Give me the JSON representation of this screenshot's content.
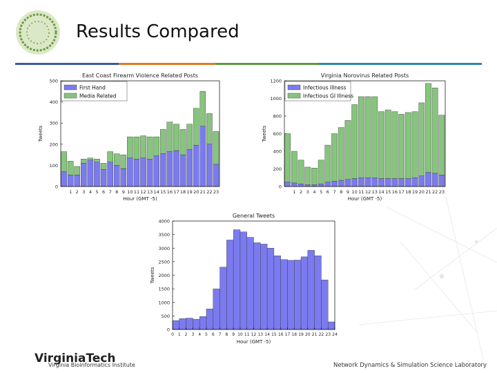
{
  "slide": {
    "title": "Results Compared",
    "footer_left_logo": "VirginiaTech",
    "footer_left_sub": "Virginia Bioinformatics Institute",
    "footer_right": "Network Dynamics & Simulation Science Laboratory"
  },
  "chart_data": [
    {
      "type": "stacked_bar",
      "title": "East Coast Firearm Violence Related Posts",
      "x_label": "Hour (GMT -5)",
      "y_label": "Tweets",
      "categories": [
        null,
        "1",
        "2",
        "3",
        "4",
        "5",
        "6",
        "7",
        "8",
        "9",
        "10",
        "11",
        "12",
        "13",
        "14",
        "15",
        "16",
        "17",
        "18",
        "19",
        "20",
        "21",
        "22",
        "23"
      ],
      "series": [
        {
          "name": "First Hand",
          "color": "#7b7bef",
          "values": [
            70,
            55,
            55,
            110,
            125,
            115,
            80,
            115,
            100,
            85,
            135,
            130,
            135,
            130,
            145,
            155,
            165,
            170,
            150,
            175,
            195,
            285,
            200,
            105
          ]
        },
        {
          "name": "Media Related",
          "color": "#87c47e",
          "values": [
            95,
            65,
            40,
            20,
            10,
            15,
            30,
            50,
            55,
            65,
            100,
            105,
            105,
            105,
            90,
            115,
            140,
            125,
            120,
            120,
            175,
            165,
            145,
            155
          ]
        }
      ],
      "ylim": [
        0,
        500
      ],
      "yticks": [
        0,
        100,
        200,
        300,
        400,
        500
      ],
      "legend": "upper left"
    },
    {
      "type": "stacked_bar",
      "title": "Virginia Norovirus Related Posts",
      "x_label": "Hour (GMT -5)",
      "y_label": "Tweets",
      "categories": [
        null,
        "1",
        "2",
        "3",
        "4",
        "5",
        "6",
        "7",
        "8",
        "9",
        "10",
        "11",
        "12",
        "13",
        "14",
        "15",
        "16",
        "17",
        "18",
        "19",
        "20",
        "21",
        "22",
        "23"
      ],
      "series": [
        {
          "name": "Infectious Illness",
          "color": "#7b7bef",
          "values": [
            50,
            40,
            30,
            20,
            20,
            30,
            50,
            60,
            70,
            80,
            90,
            100,
            100,
            100,
            90,
            90,
            90,
            90,
            90,
            100,
            120,
            160,
            150,
            130
          ]
        },
        {
          "name": "Infectious GI Illness",
          "color": "#87c47e",
          "values": [
            550,
            360,
            270,
            200,
            190,
            270,
            420,
            540,
            600,
            670,
            840,
            920,
            920,
            920,
            760,
            780,
            760,
            730,
            750,
            750,
            830,
            1010,
            970,
            680
          ]
        }
      ],
      "ylim": [
        0,
        1200
      ],
      "yticks": [
        0,
        200,
        400,
        600,
        800,
        1000,
        1200
      ],
      "legend": "upper left"
    },
    {
      "type": "histogram",
      "title": "General Tweets",
      "x_label": "Hour (GMT -5)",
      "y_label": "Tweets",
      "bins": [
        0,
        1,
        2,
        3,
        4,
        5,
        6,
        7,
        8,
        9,
        10,
        11,
        12,
        13,
        14,
        15,
        16,
        17,
        18,
        19,
        20,
        21,
        22,
        23,
        24
      ],
      "values": [
        330,
        400,
        420,
        380,
        480,
        760,
        1500,
        2300,
        3300,
        3680,
        3600,
        3400,
        3200,
        3150,
        3000,
        2720,
        2580,
        2550,
        2560,
        2680,
        2920,
        2720,
        1830,
        280
      ],
      "color": "#7b7bef",
      "xlim": [
        0,
        24
      ],
      "xticks": [
        0,
        1,
        2,
        3,
        4,
        5,
        6,
        7,
        8,
        9,
        10,
        11,
        12,
        13,
        14,
        15,
        16,
        17,
        18,
        19,
        20,
        21,
        22,
        23,
        24
      ],
      "ylim": [
        0,
        4000
      ],
      "yticks": [
        0,
        500,
        1000,
        1500,
        2000,
        2500,
        3000,
        3500,
        4000
      ]
    }
  ]
}
